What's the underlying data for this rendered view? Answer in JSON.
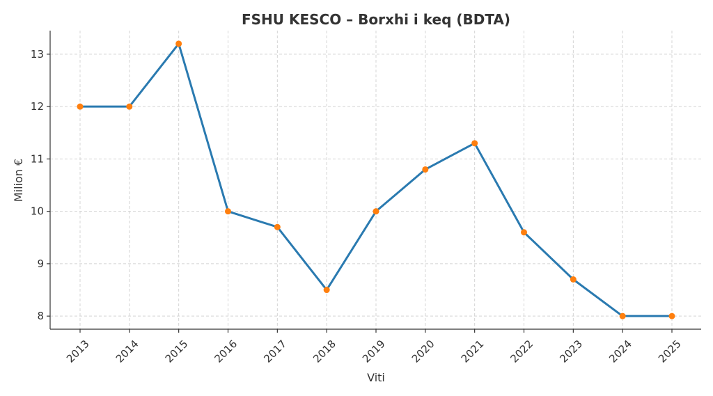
{
  "chart_data": {
    "type": "line",
    "title": "FSHU KESCO – Borxhi i keq (BDTA)",
    "xlabel": "Viti",
    "ylabel": "Milion €",
    "categories": [
      "2013",
      "2014",
      "2015",
      "2016",
      "2017",
      "2018",
      "2019",
      "2020",
      "2021",
      "2022",
      "2023",
      "2024",
      "2025"
    ],
    "series": [
      {
        "values": [
          12.0,
          12.0,
          13.2,
          10.0,
          9.7,
          8.5,
          10.0,
          10.8,
          11.3,
          9.6,
          8.7,
          8.0,
          8.0
        ]
      }
    ],
    "ylim": [
      7.75,
      13.45
    ],
    "yticks": [
      8,
      9,
      10,
      11,
      12,
      13
    ],
    "grid": true,
    "colors": {
      "line": "#2a7ab0",
      "marker": "#ff7f0e"
    }
  }
}
